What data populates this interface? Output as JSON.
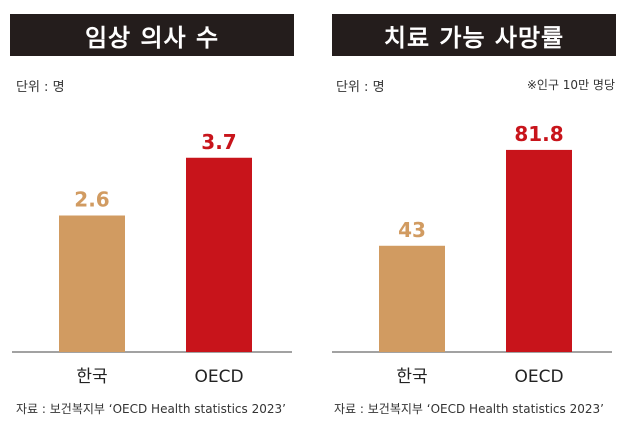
{
  "colors": {
    "korea": "#d19b61",
    "oecd": "#c8141b",
    "title_bg": "#241d1c"
  },
  "chart_data": [
    {
      "type": "bar",
      "title": "임상 의사 수",
      "unit": "단위 : 명",
      "note": "",
      "categories": [
        "한국",
        "OECD"
      ],
      "values": [
        2.6,
        3.7
      ],
      "value_labels": [
        "2.6",
        "3.7"
      ],
      "ylim": [
        0,
        4.8
      ],
      "source": "자료 : 보건복지부 ‘OECD Health statistics 2023’"
    },
    {
      "type": "bar",
      "title": "치료 가능 사망률",
      "unit": "단위 : 명",
      "note": "※인구 10만 명당",
      "categories": [
        "한국",
        "OECD"
      ],
      "values": [
        43,
        81.8
      ],
      "value_labels": [
        "43",
        "81.8"
      ],
      "ylim": [
        0,
        102
      ],
      "source": "자료 : 보건복지부 ‘OECD Health statistics 2023’"
    }
  ]
}
